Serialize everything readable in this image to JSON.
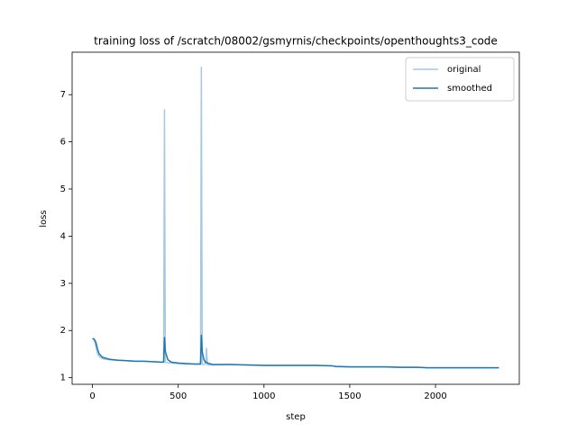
{
  "chart_data": {
    "type": "line",
    "title": "training loss of /scratch/08002/gsmyrnis/checkpoints/openthoughts3_code",
    "x_label": "step",
    "y_label": "loss",
    "x": [
      0,
      10,
      20,
      30,
      40,
      60,
      100,
      150,
      200,
      250,
      300,
      350,
      400,
      415,
      420,
      425,
      440,
      460,
      500,
      550,
      600,
      630,
      635,
      640,
      650,
      660,
      665,
      670,
      700,
      800,
      900,
      1000,
      1100,
      1200,
      1300,
      1400,
      1420,
      1500,
      1600,
      1700,
      1800,
      1900,
      1950,
      2000,
      2100,
      2200,
      2300,
      2370
    ],
    "series": [
      {
        "name": "original",
        "color": "#a6c8e1",
        "values": [
          1.83,
          1.8,
          1.65,
          1.5,
          1.45,
          1.4,
          1.38,
          1.37,
          1.36,
          1.35,
          1.35,
          1.34,
          1.33,
          1.33,
          6.68,
          1.32,
          1.32,
          1.31,
          1.3,
          1.29,
          1.29,
          1.29,
          7.58,
          1.28,
          1.28,
          1.3,
          1.62,
          1.27,
          1.27,
          1.28,
          1.27,
          1.26,
          1.26,
          1.26,
          1.26,
          1.25,
          1.23,
          1.23,
          1.23,
          1.23,
          1.22,
          1.22,
          1.21,
          1.21,
          1.21,
          1.21,
          1.21,
          1.21
        ]
      },
      {
        "name": "smoothed",
        "color": "#1f77b4",
        "values": [
          1.83,
          1.82,
          1.75,
          1.6,
          1.5,
          1.43,
          1.39,
          1.37,
          1.36,
          1.35,
          1.35,
          1.34,
          1.33,
          1.33,
          1.85,
          1.55,
          1.38,
          1.33,
          1.31,
          1.3,
          1.29,
          1.29,
          1.9,
          1.55,
          1.38,
          1.32,
          1.33,
          1.31,
          1.28,
          1.28,
          1.27,
          1.26,
          1.26,
          1.26,
          1.26,
          1.25,
          1.24,
          1.23,
          1.23,
          1.23,
          1.22,
          1.22,
          1.21,
          1.21,
          1.21,
          1.21,
          1.21,
          1.21
        ]
      }
    ],
    "xlim": [
      -118.5,
      2488.5
    ],
    "ylim": [
      0.86,
      7.9
    ],
    "xticks": [
      0,
      500,
      1000,
      1500,
      2000
    ],
    "yticks": [
      1,
      2,
      3,
      4,
      5,
      6,
      7
    ],
    "grid": false,
    "legend": "upper right"
  }
}
